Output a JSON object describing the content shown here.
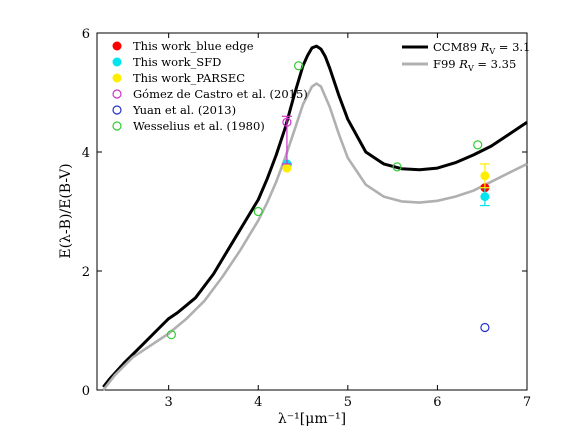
{
  "chart_data": {
    "type": "scatter",
    "xlabel": "λ⁻¹[μm⁻¹]",
    "ylabel": "E(λ-B)/E(B-V)",
    "xlim": [
      2.2,
      7
    ],
    "ylim": [
      0,
      6
    ],
    "xticks": [
      3,
      4,
      5,
      6,
      7
    ],
    "yticks": [
      0,
      2,
      4,
      6
    ],
    "legend_left": [
      {
        "label": "This work_blue edge",
        "marker": "filled-circle",
        "color": "#ff0000"
      },
      {
        "label": "This work_SFD",
        "marker": "filled-circle",
        "color": "#00e5ee"
      },
      {
        "label": "This work_PARSEC",
        "marker": "filled-circle",
        "color": "#ffee00"
      },
      {
        "label": "Gómez de Castro et al. (2015)",
        "marker": "open-circle",
        "color": "#cc33cc"
      },
      {
        "label": "Yuan et al. (2013)",
        "marker": "open-circle",
        "color": "#2233cc"
      },
      {
        "label": "Wesselius et al. (1980)",
        "marker": "open-circle",
        "color": "#33cc33"
      }
    ],
    "legend_right": [
      {
        "label": "CCM89 ",
        "sub_label": "R",
        "sub_index": "V",
        "value_label": " = 3.1",
        "color": "#000000"
      },
      {
        "label": "F99 ",
        "sub_label": "R",
        "sub_index": "V",
        "value_label": " = 3.35",
        "color": "#b0b0b0"
      }
    ],
    "curves": [
      {
        "name": "CCM89 R_V = 3.1",
        "color": "#000000",
        "x": [
          2.27,
          2.35,
          2.5,
          2.7,
          2.9,
          3.0,
          3.1,
          3.3,
          3.5,
          3.7,
          3.9,
          4.0,
          4.1,
          4.2,
          4.3,
          4.4,
          4.5,
          4.55,
          4.6,
          4.65,
          4.7,
          4.75,
          4.8,
          4.9,
          5.0,
          5.2,
          5.4,
          5.6,
          5.8,
          6.0,
          6.2,
          6.4,
          6.6,
          6.8,
          7.0
        ],
        "y": [
          0.05,
          0.2,
          0.45,
          0.75,
          1.05,
          1.2,
          1.3,
          1.55,
          1.95,
          2.45,
          2.95,
          3.2,
          3.55,
          3.95,
          4.4,
          4.95,
          5.45,
          5.62,
          5.75,
          5.78,
          5.73,
          5.6,
          5.4,
          4.95,
          4.55,
          4.0,
          3.8,
          3.72,
          3.7,
          3.73,
          3.82,
          3.95,
          4.1,
          4.3,
          4.5
        ]
      },
      {
        "name": "F99 R_V = 3.35",
        "color": "#b0b0b0",
        "x": [
          2.27,
          2.4,
          2.6,
          2.8,
          3.0,
          3.2,
          3.4,
          3.6,
          3.8,
          4.0,
          4.1,
          4.2,
          4.3,
          4.4,
          4.5,
          4.6,
          4.65,
          4.7,
          4.8,
          4.9,
          5.0,
          5.2,
          5.4,
          5.6,
          5.8,
          6.0,
          6.2,
          6.4,
          6.6,
          6.8,
          7.0
        ],
        "y": [
          0.0,
          0.25,
          0.55,
          0.75,
          0.95,
          1.2,
          1.5,
          1.9,
          2.35,
          2.85,
          3.15,
          3.5,
          3.9,
          4.35,
          4.8,
          5.1,
          5.15,
          5.1,
          4.75,
          4.3,
          3.9,
          3.45,
          3.25,
          3.17,
          3.15,
          3.18,
          3.25,
          3.35,
          3.5,
          3.65,
          3.8
        ]
      }
    ],
    "series": [
      {
        "name": "This work_blue edge",
        "marker": "filled",
        "color": "#ff0000",
        "points": [
          {
            "x": 4.32,
            "y": 3.78
          },
          {
            "x": 6.53,
            "y": 3.4
          }
        ]
      },
      {
        "name": "This work_SFD",
        "marker": "filled",
        "color": "#00e5ee",
        "points": [
          {
            "x": 4.32,
            "y": 3.8
          },
          {
            "x": 6.53,
            "y": 3.25,
            "err": 0.15
          }
        ]
      },
      {
        "name": "This work_PARSEC",
        "marker": "filled",
        "color": "#ffee00",
        "points": [
          {
            "x": 4.32,
            "y": 3.73
          },
          {
            "x": 6.53,
            "y": 3.6,
            "err": 0.2
          }
        ]
      },
      {
        "name": "Gómez de Castro et al. (2015)",
        "marker": "open",
        "color": "#cc33cc",
        "points": [
          {
            "x": 4.32,
            "y": 4.5,
            "err_low": 0.7,
            "err_high": 0.1
          }
        ]
      },
      {
        "name": "Yuan et al. (2013)",
        "marker": "open",
        "color": "#2233cc",
        "points": [
          {
            "x": 6.53,
            "y": 1.05
          }
        ]
      },
      {
        "name": "Wesselius et al. (1980)",
        "marker": "open",
        "color": "#33cc33",
        "points": [
          {
            "x": 3.03,
            "y": 0.93
          },
          {
            "x": 4.0,
            "y": 3.0
          },
          {
            "x": 4.45,
            "y": 5.45
          },
          {
            "x": 5.55,
            "y": 3.75
          },
          {
            "x": 6.45,
            "y": 4.12
          }
        ]
      }
    ]
  }
}
